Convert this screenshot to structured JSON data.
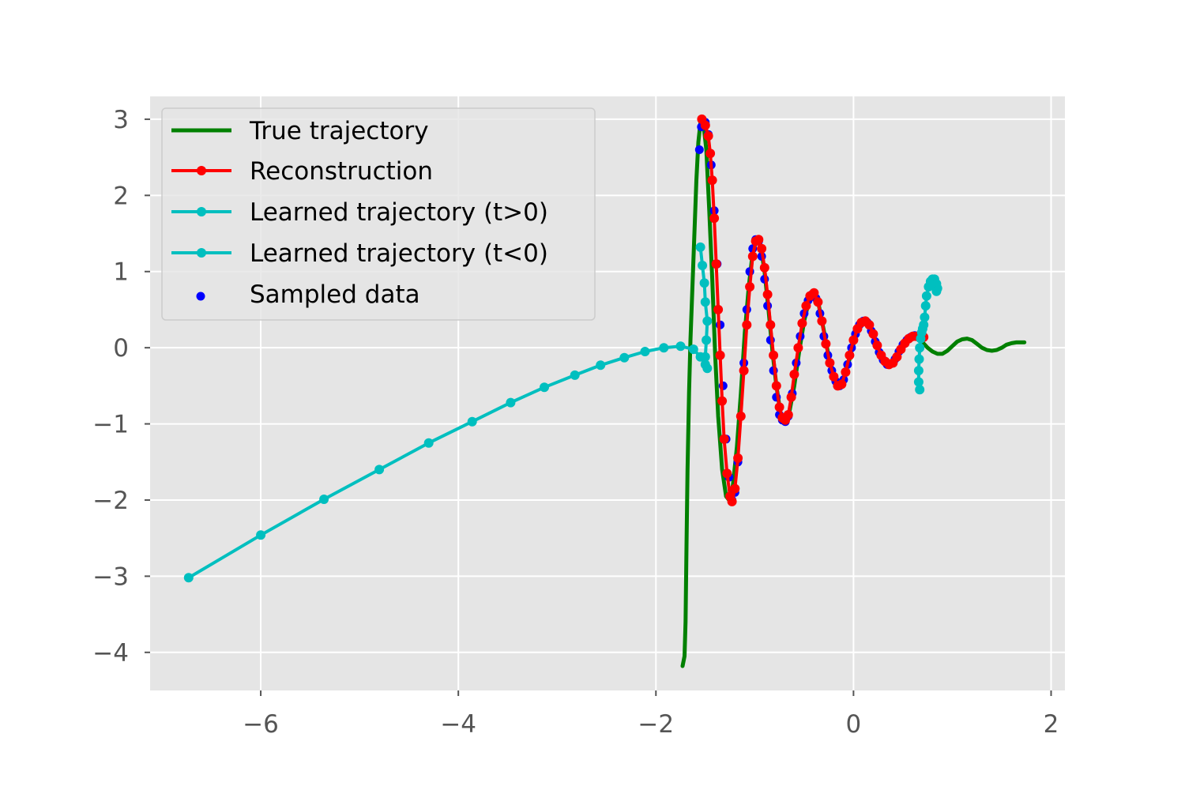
{
  "chart_data": {
    "type": "line",
    "title": "",
    "xlabel": "",
    "ylabel": "",
    "xlim": [
      -7.12,
      2.14
    ],
    "ylim": [
      -4.5,
      3.3
    ],
    "xticks": [
      -6,
      -4,
      -2,
      0,
      2
    ],
    "yticks": [
      3,
      2,
      1,
      0,
      -1,
      -2,
      -3,
      -4
    ],
    "xtick_labels": [
      "−6",
      "−4",
      "−2",
      "0",
      "2"
    ],
    "ytick_labels": [
      "3",
      "2",
      "1",
      "0",
      "−1",
      "−2",
      "−3",
      "−4"
    ],
    "grid": true,
    "background": "#e5e5e5",
    "legend_placement": "upper-left",
    "series": [
      {
        "name": "True trajectory",
        "kind": "line",
        "color": "#008000",
        "points": [
          [
            -1.73,
            -4.18
          ],
          [
            -1.71,
            -4.05
          ],
          [
            -1.7,
            -3.6
          ],
          [
            -1.69,
            -2.6
          ],
          [
            -1.68,
            -1.6
          ],
          [
            -1.665,
            -0.6
          ],
          [
            -1.65,
            0.1
          ],
          [
            -1.63,
            0.8
          ],
          [
            -1.61,
            1.5
          ],
          [
            -1.59,
            2.2
          ],
          [
            -1.57,
            2.7
          ],
          [
            -1.55,
            2.95
          ],
          [
            -1.52,
            2.95
          ],
          [
            -1.49,
            2.6
          ],
          [
            -1.46,
            1.8
          ],
          [
            -1.43,
            0.9
          ],
          [
            -1.4,
            -0.1
          ],
          [
            -1.37,
            -0.9
          ],
          [
            -1.33,
            -1.6
          ],
          [
            -1.29,
            -1.95
          ],
          [
            -1.26,
            -2.0
          ],
          [
            -1.22,
            -1.8
          ],
          [
            -1.18,
            -1.3
          ],
          [
            -1.14,
            -0.6
          ],
          [
            -1.1,
            0.2
          ],
          [
            -1.06,
            0.8
          ],
          [
            -1.02,
            1.25
          ],
          [
            -0.98,
            1.42
          ],
          [
            -0.94,
            1.35
          ],
          [
            -0.9,
            1.0
          ],
          [
            -0.86,
            0.5
          ],
          [
            -0.82,
            -0.05
          ],
          [
            -0.78,
            -0.5
          ],
          [
            -0.74,
            -0.85
          ],
          [
            -0.7,
            -0.95
          ],
          [
            -0.65,
            -0.85
          ],
          [
            -0.6,
            -0.5
          ],
          [
            -0.55,
            -0.05
          ],
          [
            -0.5,
            0.35
          ],
          [
            -0.45,
            0.62
          ],
          [
            -0.4,
            0.7
          ],
          [
            -0.35,
            0.55
          ],
          [
            -0.3,
            0.22
          ],
          [
            -0.25,
            -0.12
          ],
          [
            -0.2,
            -0.35
          ],
          [
            -0.15,
            -0.47
          ],
          [
            -0.1,
            -0.4
          ],
          [
            -0.05,
            -0.2
          ],
          [
            0.0,
            0.05
          ],
          [
            0.05,
            0.25
          ],
          [
            0.1,
            0.35
          ],
          [
            0.15,
            0.32
          ],
          [
            0.2,
            0.18
          ],
          [
            0.25,
            0.0
          ],
          [
            0.3,
            -0.15
          ],
          [
            0.35,
            -0.22
          ],
          [
            0.4,
            -0.2
          ],
          [
            0.45,
            -0.1
          ],
          [
            0.5,
            0.03
          ],
          [
            0.55,
            0.12
          ],
          [
            0.6,
            0.15
          ],
          [
            0.65,
            0.13
          ],
          [
            0.7,
            0.07
          ],
          [
            0.75,
            0.0
          ],
          [
            0.8,
            -0.05
          ],
          [
            0.85,
            -0.08
          ],
          [
            0.9,
            -0.08
          ],
          [
            0.95,
            -0.04
          ],
          [
            1.0,
            0.02
          ],
          [
            1.05,
            0.08
          ],
          [
            1.1,
            0.11
          ],
          [
            1.15,
            0.12
          ],
          [
            1.2,
            0.1
          ],
          [
            1.25,
            0.05
          ],
          [
            1.3,
            0.0
          ],
          [
            1.35,
            -0.03
          ],
          [
            1.4,
            -0.04
          ],
          [
            1.45,
            -0.03
          ],
          [
            1.5,
            0.0
          ],
          [
            1.55,
            0.04
          ],
          [
            1.6,
            0.06
          ],
          [
            1.65,
            0.07
          ],
          [
            1.7,
            0.07
          ],
          [
            1.73,
            0.07
          ]
        ]
      },
      {
        "name": "Reconstruction",
        "kind": "line-markers",
        "color": "#ff0000",
        "points": [
          [
            -1.535,
            3.0
          ],
          [
            -1.5,
            2.92
          ],
          [
            -1.47,
            2.78
          ],
          [
            -1.45,
            2.55
          ],
          [
            -1.43,
            2.2
          ],
          [
            -1.41,
            1.7
          ],
          [
            -1.39,
            1.1
          ],
          [
            -1.37,
            0.5
          ],
          [
            -1.35,
            -0.1
          ],
          [
            -1.33,
            -0.7
          ],
          [
            -1.31,
            -1.2
          ],
          [
            -1.28,
            -1.65
          ],
          [
            -1.25,
            -1.95
          ],
          [
            -1.23,
            -2.02
          ],
          [
            -1.2,
            -1.85
          ],
          [
            -1.17,
            -1.45
          ],
          [
            -1.14,
            -0.9
          ],
          [
            -1.11,
            -0.3
          ],
          [
            -1.08,
            0.3
          ],
          [
            -1.05,
            0.8
          ],
          [
            -1.02,
            1.2
          ],
          [
            -0.99,
            1.4
          ],
          [
            -0.96,
            1.42
          ],
          [
            -0.93,
            1.3
          ],
          [
            -0.9,
            1.05
          ],
          [
            -0.87,
            0.7
          ],
          [
            -0.84,
            0.3
          ],
          [
            -0.81,
            -0.1
          ],
          [
            -0.78,
            -0.5
          ],
          [
            -0.75,
            -0.78
          ],
          [
            -0.72,
            -0.92
          ],
          [
            -0.69,
            -0.95
          ],
          [
            -0.66,
            -0.88
          ],
          [
            -0.63,
            -0.65
          ],
          [
            -0.6,
            -0.35
          ],
          [
            -0.56,
            0.0
          ],
          [
            -0.52,
            0.32
          ],
          [
            -0.48,
            0.55
          ],
          [
            -0.44,
            0.68
          ],
          [
            -0.4,
            0.72
          ],
          [
            -0.36,
            0.6
          ],
          [
            -0.32,
            0.35
          ],
          [
            -0.28,
            0.05
          ],
          [
            -0.24,
            -0.2
          ],
          [
            -0.2,
            -0.38
          ],
          [
            -0.16,
            -0.5
          ],
          [
            -0.12,
            -0.48
          ],
          [
            -0.08,
            -0.32
          ],
          [
            -0.04,
            -0.1
          ],
          [
            0.0,
            0.1
          ],
          [
            0.04,
            0.25
          ],
          [
            0.08,
            0.33
          ],
          [
            0.12,
            0.35
          ],
          [
            0.16,
            0.3
          ],
          [
            0.2,
            0.18
          ],
          [
            0.24,
            0.03
          ],
          [
            0.28,
            -0.1
          ],
          [
            0.32,
            -0.18
          ],
          [
            0.36,
            -0.22
          ],
          [
            0.4,
            -0.2
          ],
          [
            0.44,
            -0.12
          ],
          [
            0.48,
            -0.02
          ],
          [
            0.52,
            0.06
          ],
          [
            0.56,
            0.12
          ],
          [
            0.6,
            0.15
          ],
          [
            0.64,
            0.15
          ],
          [
            0.68,
            0.13
          ],
          [
            0.71,
            0.14
          ]
        ]
      },
      {
        "name": "Learned trajectory (t>0)",
        "kind": "line-markers",
        "color": "#00bfbf",
        "points": [
          [
            0.67,
            -0.55
          ],
          [
            0.66,
            -0.45
          ],
          [
            0.66,
            -0.3
          ],
          [
            0.665,
            -0.15
          ],
          [
            0.67,
            0.0
          ],
          [
            0.68,
            0.12
          ],
          [
            0.69,
            0.2
          ],
          [
            0.7,
            0.25
          ],
          [
            0.71,
            0.3
          ],
          [
            0.72,
            0.4
          ],
          [
            0.73,
            0.55
          ],
          [
            0.74,
            0.68
          ],
          [
            0.76,
            0.8
          ],
          [
            0.78,
            0.87
          ],
          [
            0.8,
            0.9
          ],
          [
            0.82,
            0.9
          ],
          [
            0.84,
            0.84
          ],
          [
            0.85,
            0.78
          ],
          [
            0.84,
            0.74
          ]
        ]
      },
      {
        "name": "Learned trajectory (t<0)",
        "kind": "line-markers",
        "color": "#00bfbf",
        "points": [
          [
            -6.73,
            -3.02
          ],
          [
            -6.0,
            -2.46
          ],
          [
            -5.36,
            -1.99
          ],
          [
            -4.8,
            -1.6
          ],
          [
            -4.3,
            -1.25
          ],
          [
            -3.86,
            -0.97
          ],
          [
            -3.47,
            -0.72
          ],
          [
            -3.13,
            -0.52
          ],
          [
            -2.82,
            -0.36
          ],
          [
            -2.56,
            -0.23
          ],
          [
            -2.32,
            -0.13
          ],
          [
            -2.11,
            -0.05
          ],
          [
            -1.92,
            0.0
          ],
          [
            -1.75,
            0.02
          ],
          [
            -1.62,
            -0.02
          ],
          [
            -1.55,
            -0.12
          ],
          [
            -1.5,
            -0.22
          ],
          [
            -1.48,
            -0.27
          ],
          [
            -1.5,
            -0.12
          ],
          [
            -1.49,
            0.1
          ],
          [
            -1.48,
            0.35
          ],
          [
            -1.5,
            0.6
          ],
          [
            -1.51,
            0.85
          ],
          [
            -1.53,
            1.08
          ],
          [
            -1.55,
            1.32
          ]
        ]
      },
      {
        "name": "Sampled data",
        "kind": "scatter",
        "color": "#0000ff",
        "points": [
          [
            -1.56,
            2.6
          ],
          [
            -1.54,
            2.9
          ],
          [
            -1.5,
            2.96
          ],
          [
            -1.47,
            2.8
          ],
          [
            -1.44,
            2.4
          ],
          [
            -1.41,
            1.8
          ],
          [
            -1.38,
            1.1
          ],
          [
            -1.35,
            0.3
          ],
          [
            -1.32,
            -0.5
          ],
          [
            -1.29,
            -1.2
          ],
          [
            -1.26,
            -1.7
          ],
          [
            -1.23,
            -2.0
          ],
          [
            -1.2,
            -1.9
          ],
          [
            -1.17,
            -1.5
          ],
          [
            -1.14,
            -0.9
          ],
          [
            -1.11,
            -0.2
          ],
          [
            -1.08,
            0.5
          ],
          [
            -1.05,
            1.0
          ],
          [
            -1.02,
            1.3
          ],
          [
            -0.99,
            1.42
          ],
          [
            -0.96,
            1.4
          ],
          [
            -0.93,
            1.2
          ],
          [
            -0.9,
            0.9
          ],
          [
            -0.87,
            0.55
          ],
          [
            -0.84,
            0.1
          ],
          [
            -0.81,
            -0.3
          ],
          [
            -0.78,
            -0.65
          ],
          [
            -0.75,
            -0.88
          ],
          [
            -0.72,
            -0.95
          ],
          [
            -0.69,
            -0.97
          ],
          [
            -0.66,
            -0.9
          ],
          [
            -0.62,
            -0.6
          ],
          [
            -0.58,
            -0.2
          ],
          [
            -0.54,
            0.15
          ],
          [
            -0.5,
            0.45
          ],
          [
            -0.46,
            0.62
          ],
          [
            -0.42,
            0.7
          ],
          [
            -0.38,
            0.65
          ],
          [
            -0.34,
            0.45
          ],
          [
            -0.3,
            0.15
          ],
          [
            -0.26,
            -0.1
          ],
          [
            -0.22,
            -0.3
          ],
          [
            -0.18,
            -0.44
          ],
          [
            -0.14,
            -0.5
          ],
          [
            -0.1,
            -0.42
          ],
          [
            -0.06,
            -0.22
          ],
          [
            -0.02,
            0.0
          ],
          [
            0.02,
            0.18
          ],
          [
            0.06,
            0.3
          ],
          [
            0.1,
            0.35
          ],
          [
            0.14,
            0.33
          ],
          [
            0.18,
            0.22
          ],
          [
            0.22,
            0.08
          ],
          [
            0.26,
            -0.06
          ],
          [
            0.3,
            -0.16
          ],
          [
            0.34,
            -0.22
          ],
          [
            0.38,
            -0.21
          ],
          [
            0.42,
            -0.15
          ],
          [
            0.46,
            -0.05
          ],
          [
            0.5,
            0.04
          ],
          [
            0.54,
            0.1
          ],
          [
            0.58,
            0.14
          ],
          [
            0.62,
            0.16
          ],
          [
            0.66,
            0.15
          ],
          [
            0.7,
            0.13
          ]
        ]
      }
    ]
  }
}
